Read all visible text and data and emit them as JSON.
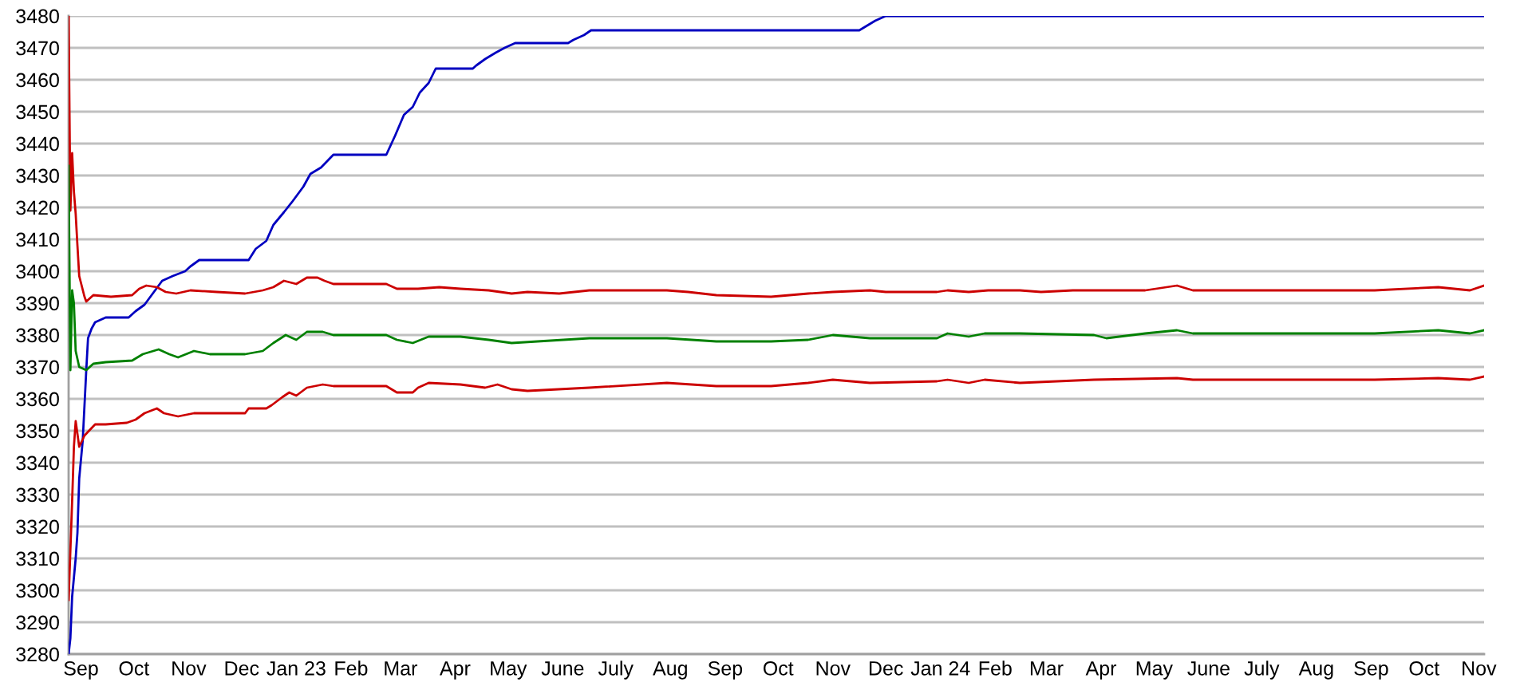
{
  "chart_data": {
    "type": "line",
    "xlim": [
      "2022-08-25",
      "2024-11-04"
    ],
    "xticks": [
      {
        "value": "2022-09-01",
        "label": "Sep"
      },
      {
        "value": "2022-10-01",
        "label": "Oct"
      },
      {
        "value": "2022-11-01",
        "label": "Nov"
      },
      {
        "value": "2022-12-01",
        "label": "Dec"
      },
      {
        "value": "2023-01-01",
        "label": "Jan 23"
      },
      {
        "value": "2023-02-01",
        "label": "Feb"
      },
      {
        "value": "2023-03-01",
        "label": "Mar"
      },
      {
        "value": "2023-04-01",
        "label": "Apr"
      },
      {
        "value": "2023-05-01",
        "label": "May"
      },
      {
        "value": "2023-06-01",
        "label": "June"
      },
      {
        "value": "2023-07-01",
        "label": "July"
      },
      {
        "value": "2023-08-01",
        "label": "Aug"
      },
      {
        "value": "2023-09-01",
        "label": "Sep"
      },
      {
        "value": "2023-10-01",
        "label": "Oct"
      },
      {
        "value": "2023-11-01",
        "label": "Nov"
      },
      {
        "value": "2023-12-01",
        "label": "Dec"
      },
      {
        "value": "2024-01-01",
        "label": "Jan 24"
      },
      {
        "value": "2024-02-01",
        "label": "Feb"
      },
      {
        "value": "2024-03-01",
        "label": "Mar"
      },
      {
        "value": "2024-04-01",
        "label": "Apr"
      },
      {
        "value": "2024-05-01",
        "label": "May"
      },
      {
        "value": "2024-06-01",
        "label": "June"
      },
      {
        "value": "2024-07-01",
        "label": "July"
      },
      {
        "value": "2024-08-01",
        "label": "Aug"
      },
      {
        "value": "2024-09-01",
        "label": "Sep"
      },
      {
        "value": "2024-10-01",
        "label": "Oct"
      },
      {
        "value": "2024-11-01",
        "label": "Nov"
      }
    ],
    "ylim": [
      3280,
      3480
    ],
    "yticks": [
      3280,
      3290,
      3300,
      3310,
      3320,
      3330,
      3340,
      3350,
      3360,
      3370,
      3380,
      3390,
      3400,
      3410,
      3420,
      3430,
      3440,
      3450,
      3460,
      3470,
      3480
    ],
    "grid": "y",
    "series": [
      {
        "color": "#0000c0",
        "x": [
          "2022-08-25",
          "2022-08-26",
          "2022-08-27",
          "2022-08-29",
          "2022-08-30",
          "2022-08-31",
          "2022-09-02",
          "2022-09-03",
          "2022-09-04",
          "2022-09-05",
          "2022-09-07",
          "2022-09-09",
          "2022-09-15",
          "2022-09-28",
          "2022-10-02",
          "2022-10-07",
          "2022-10-11",
          "2022-10-17",
          "2022-10-23",
          "2022-10-30",
          "2022-11-02",
          "2022-11-07",
          "2022-12-05",
          "2022-12-09",
          "2022-12-15",
          "2022-12-19",
          "2022-12-25",
          "2022-12-30",
          "2023-01-05",
          "2023-01-09",
          "2023-01-15",
          "2023-01-22",
          "2023-02-21",
          "2023-02-26",
          "2023-03-03",
          "2023-03-08",
          "2023-03-12",
          "2023-03-17",
          "2023-03-21",
          "2023-04-11",
          "2023-04-13",
          "2023-04-18",
          "2023-04-24",
          "2023-04-29",
          "2023-05-05",
          "2023-06-04",
          "2023-06-07",
          "2023-06-13",
          "2023-06-17",
          "2023-11-16",
          "2023-11-19",
          "2023-11-25",
          "2023-12-01",
          "2024-11-04"
        ],
        "values": [
          3280,
          3285,
          3298,
          3310,
          3318,
          3335,
          3347,
          3358,
          3369,
          3379,
          3382,
          3384,
          3385.5,
          3385.5,
          3387.5,
          3389.5,
          3392.5,
          3397,
          3398.5,
          3400,
          3401.5,
          3403.5,
          3403.5,
          3407,
          3409.5,
          3414.5,
          3418.5,
          3422,
          3426.5,
          3430.5,
          3432.5,
          3436.5,
          3436.5,
          3442.5,
          3449,
          3451.5,
          3456,
          3459,
          3463.5,
          3463.5,
          3464.5,
          3466.5,
          3468.5,
          3470,
          3471.5,
          3471.5,
          3472.5,
          3474,
          3475.5,
          3475.5,
          3476.5,
          3478.5,
          3480,
          3480
        ]
      },
      {
        "color": "#cc0000",
        "x": [
          "2022-08-25",
          "2022-08-26",
          "2022-08-27",
          "2022-08-28",
          "2022-08-29",
          "2022-08-30",
          "2022-08-31",
          "2022-09-03",
          "2022-09-04",
          "2022-09-08",
          "2022-09-18",
          "2022-09-30",
          "2022-10-04",
          "2022-10-08",
          "2022-10-14",
          "2022-10-19",
          "2022-10-25",
          "2022-11-02",
          "2022-11-17",
          "2022-12-03",
          "2022-12-13",
          "2022-12-19",
          "2022-12-25",
          "2023-01-01",
          "2023-01-07",
          "2023-01-13",
          "2023-01-17",
          "2023-01-22",
          "2023-02-21",
          "2023-02-27",
          "2023-03-11",
          "2023-03-23",
          "2023-04-04",
          "2023-04-20",
          "2023-05-03",
          "2023-05-12",
          "2023-05-30",
          "2023-06-16",
          "2023-07-04",
          "2023-07-30",
          "2023-08-11",
          "2023-08-27",
          "2023-09-27",
          "2023-10-18",
          "2023-11-01",
          "2023-11-22",
          "2023-12-01",
          "2023-12-30",
          "2024-01-05",
          "2024-01-17",
          "2024-01-28",
          "2024-02-15",
          "2024-02-27",
          "2024-03-16",
          "2024-04-26",
          "2024-05-14",
          "2024-05-23",
          "2024-07-18",
          "2024-09-03",
          "2024-10-09",
          "2024-10-27",
          "2024-11-04"
        ],
        "values": [
          3480,
          3419,
          3437,
          3425,
          3418,
          3408,
          3398.5,
          3392,
          3390.5,
          3392.5,
          3392,
          3392.5,
          3394.5,
          3395.5,
          3395,
          3393.5,
          3393,
          3394,
          3393.5,
          3393,
          3394,
          3395,
          3397,
          3396,
          3398,
          3398,
          3397,
          3396,
          3396,
          3394.5,
          3394.5,
          3395,
          3394.5,
          3394,
          3393,
          3393.5,
          3393,
          3394,
          3394,
          3394,
          3393.5,
          3392.5,
          3392,
          3393,
          3393.5,
          3394,
          3393.5,
          3393.5,
          3394,
          3393.5,
          3394,
          3394,
          3393.5,
          3394,
          3394,
          3395.5,
          3394,
          3394,
          3394,
          3395,
          3394,
          3395.5
        ]
      },
      {
        "color": "#008000",
        "x": [
          "2022-08-25",
          "2022-08-26",
          "2022-08-27",
          "2022-08-28",
          "2022-08-29",
          "2022-08-31",
          "2022-09-04",
          "2022-09-08",
          "2022-09-15",
          "2022-09-30",
          "2022-10-06",
          "2022-10-12",
          "2022-10-15",
          "2022-10-21",
          "2022-10-26",
          "2022-11-04",
          "2022-11-13",
          "2022-12-03",
          "2022-12-13",
          "2022-12-19",
          "2022-12-26",
          "2023-01-01",
          "2023-01-07",
          "2023-01-16",
          "2023-01-22",
          "2023-02-21",
          "2023-02-27",
          "2023-03-08",
          "2023-03-17",
          "2023-04-04",
          "2023-04-20",
          "2023-05-03",
          "2023-06-16",
          "2023-07-30",
          "2023-08-27",
          "2023-09-27",
          "2023-10-18",
          "2023-11-01",
          "2023-11-22",
          "2023-12-30",
          "2024-01-05",
          "2024-01-17",
          "2024-01-26",
          "2024-02-15",
          "2024-03-28",
          "2024-04-04",
          "2024-04-26",
          "2024-05-14",
          "2024-05-23",
          "2024-09-03",
          "2024-10-09",
          "2024-10-27",
          "2024-11-04"
        ],
        "values": [
          3433,
          3369,
          3394,
          3390,
          3375,
          3370,
          3369,
          3371,
          3371.5,
          3372,
          3374,
          3375,
          3375.5,
          3374,
          3373,
          3375,
          3374,
          3374,
          3375,
          3377.5,
          3380,
          3378.5,
          3381,
          3381,
          3380,
          3380,
          3378.5,
          3377.5,
          3379.5,
          3379.5,
          3378.5,
          3377.5,
          3379,
          3379,
          3378,
          3378,
          3378.5,
          3380,
          3379,
          3379,
          3380.5,
          3379.5,
          3380.5,
          3380.5,
          3380,
          3379,
          3380.5,
          3381.5,
          3380.5,
          3380.5,
          3381.5,
          3380.5,
          3381.5
        ]
      },
      {
        "color": "#cc0000",
        "x": [
          "2022-08-25",
          "2022-08-27",
          "2022-08-28",
          "2022-08-29",
          "2022-08-30",
          "2022-08-31",
          "2022-09-03",
          "2022-09-09",
          "2022-09-15",
          "2022-09-27",
          "2022-10-02",
          "2022-10-07",
          "2022-10-14",
          "2022-10-18",
          "2022-10-26",
          "2022-11-04",
          "2022-11-13",
          "2022-12-03",
          "2022-12-05",
          "2022-12-15",
          "2022-12-18",
          "2022-12-24",
          "2022-12-28",
          "2023-01-01",
          "2023-01-07",
          "2023-01-16",
          "2023-01-22",
          "2023-02-21",
          "2023-02-27",
          "2023-03-08",
          "2023-03-11",
          "2023-03-17",
          "2023-04-04",
          "2023-04-18",
          "2023-04-25",
          "2023-05-03",
          "2023-05-12",
          "2023-06-16",
          "2023-07-30",
          "2023-08-27",
          "2023-09-27",
          "2023-10-18",
          "2023-11-01",
          "2023-11-22",
          "2023-12-30",
          "2024-01-05",
          "2024-01-17",
          "2024-01-26",
          "2024-02-15",
          "2024-03-28",
          "2024-05-14",
          "2024-05-23",
          "2024-09-03",
          "2024-10-09",
          "2024-10-27",
          "2024-11-04"
        ],
        "values": [
          3297,
          3328,
          3345,
          3353,
          3349,
          3345,
          3348.5,
          3352,
          3352,
          3352.5,
          3353.5,
          3355.5,
          3357,
          3355.5,
          3354.5,
          3355.5,
          3355.5,
          3355.5,
          3357,
          3357,
          3358,
          3360.5,
          3362,
          3361,
          3363.5,
          3364.5,
          3364,
          3364,
          3362,
          3362,
          3363.5,
          3365,
          3364.5,
          3363.5,
          3364.5,
          3363,
          3362.5,
          3363.5,
          3365,
          3364,
          3364,
          3365,
          3366,
          3365,
          3365.5,
          3366,
          3365,
          3366,
          3365,
          3366,
          3366.5,
          3366,
          3366,
          3366.5,
          3366,
          3367
        ]
      }
    ]
  }
}
